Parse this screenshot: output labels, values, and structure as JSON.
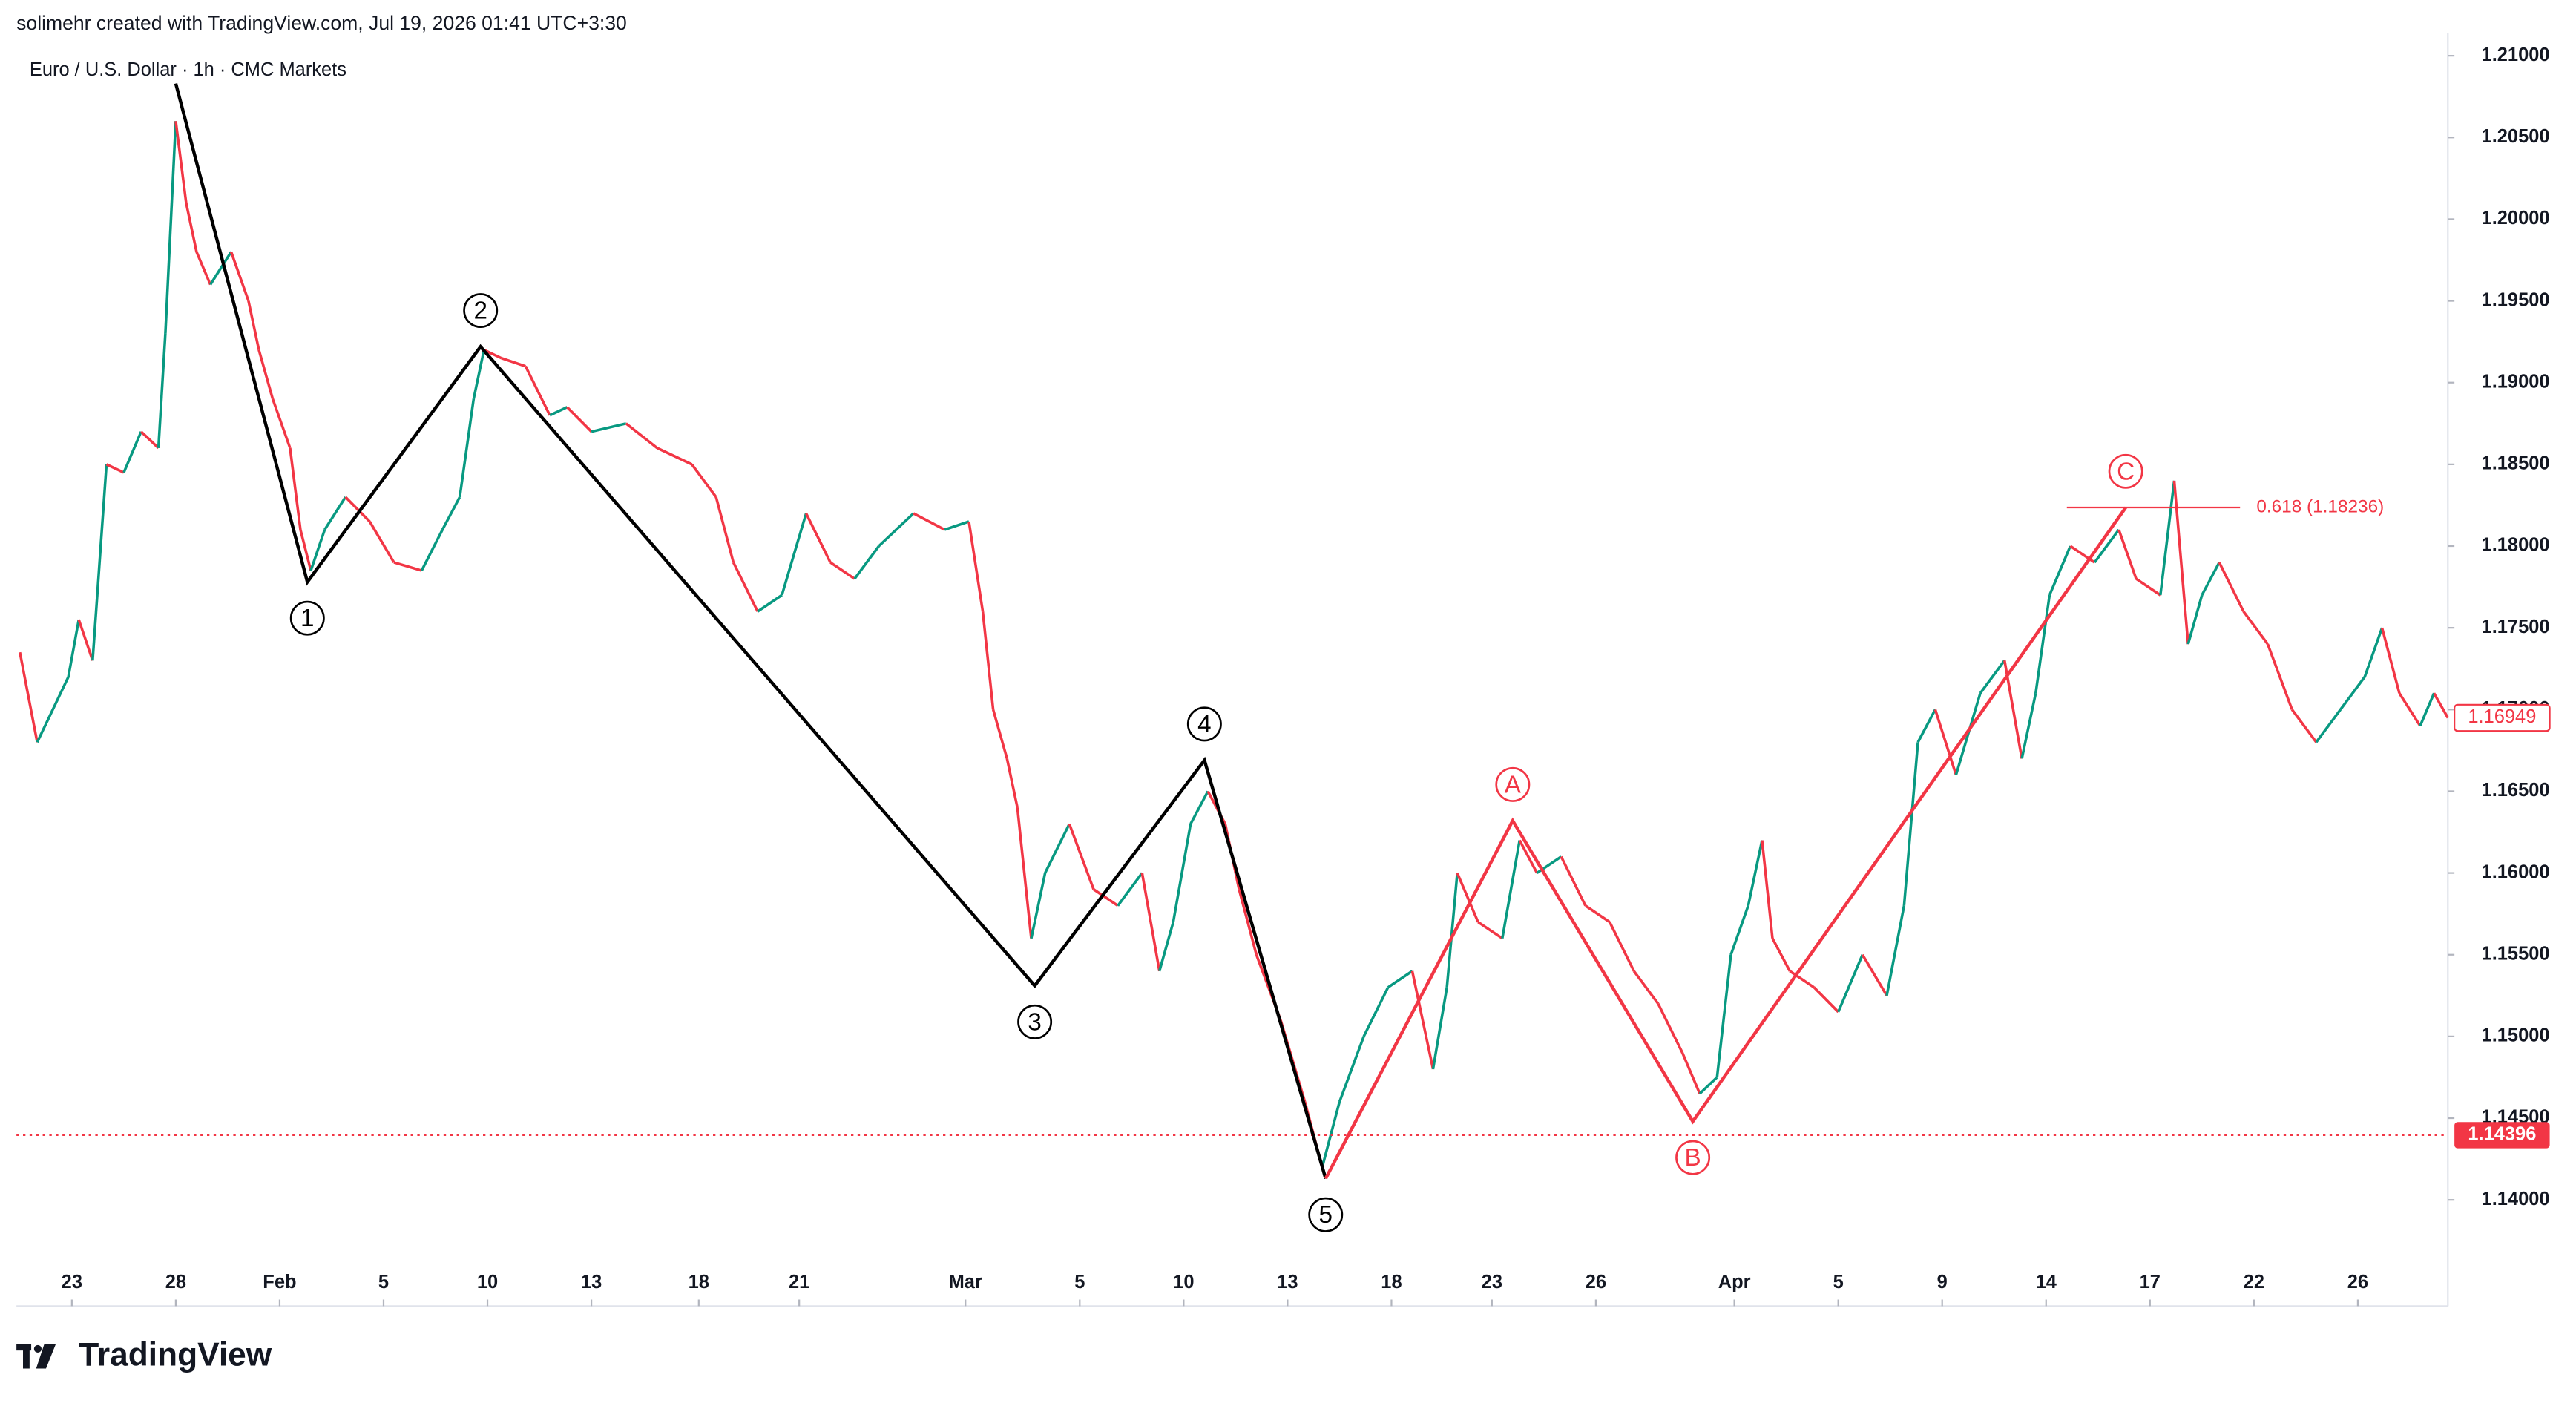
{
  "header": {
    "credit": "solimehr created with TradingView.com, Jul 19, 2026 01:41 UTC+3:30"
  },
  "footer": {
    "brand": "TradingView"
  },
  "chart_data": {
    "type": "line",
    "title": "Euro / U.S. Dollar · 1h · CMC Markets",
    "ylim": [
      1.1335,
      1.2114
    ],
    "yticks": [
      {
        "value": 1.21,
        "label": "1.21000"
      },
      {
        "value": 1.205,
        "label": "1.20500"
      },
      {
        "value": 1.2,
        "label": "1.20000"
      },
      {
        "value": 1.195,
        "label": "1.19500"
      },
      {
        "value": 1.19,
        "label": "1.19000"
      },
      {
        "value": 1.185,
        "label": "1.18500"
      },
      {
        "value": 1.18,
        "label": "1.18000"
      },
      {
        "value": 1.175,
        "label": "1.17500"
      },
      {
        "value": 1.17,
        "label": "1.17000"
      },
      {
        "value": 1.165,
        "label": "1.16500"
      },
      {
        "value": 1.16,
        "label": "1.16000"
      },
      {
        "value": 1.155,
        "label": "1.15500"
      },
      {
        "value": 1.15,
        "label": "1.15000"
      },
      {
        "value": 1.145,
        "label": "1.14500"
      },
      {
        "value": 1.14,
        "label": "1.14000"
      }
    ],
    "xlim": [
      -1.6,
      68.6
    ],
    "xticks": [
      {
        "value": 0,
        "label": "23"
      },
      {
        "value": 3,
        "label": "28"
      },
      {
        "value": 6,
        "label": "Feb"
      },
      {
        "value": 9,
        "label": "5"
      },
      {
        "value": 12,
        "label": "10"
      },
      {
        "value": 15,
        "label": "13"
      },
      {
        "value": 18.1,
        "label": "18"
      },
      {
        "value": 21,
        "label": "21"
      },
      {
        "value": 25.8,
        "label": "Mar"
      },
      {
        "value": 29.1,
        "label": "5"
      },
      {
        "value": 32.1,
        "label": "10"
      },
      {
        "value": 35.1,
        "label": "13"
      },
      {
        "value": 38.1,
        "label": "18"
      },
      {
        "value": 41,
        "label": "23"
      },
      {
        "value": 44,
        "label": "26"
      },
      {
        "value": 48,
        "label": "Apr"
      },
      {
        "value": 51,
        "label": "5"
      },
      {
        "value": 54,
        "label": "9"
      },
      {
        "value": 57,
        "label": "14"
      },
      {
        "value": 60,
        "label": "17"
      },
      {
        "value": 63,
        "label": "22"
      },
      {
        "value": 66,
        "label": "26"
      }
    ],
    "up_color": "#089981",
    "down_color": "#f23645",
    "x": [
      -1.5,
      -1.0,
      -0.1,
      0.2,
      0.6,
      1.0,
      1.5,
      2.0,
      2.5,
      2.7,
      3.0,
      3.3,
      3.6,
      4.0,
      4.6,
      5.1,
      5.4,
      5.8,
      6.3,
      6.6,
      6.9,
      7.3,
      7.9,
      8.6,
      9.3,
      10.1,
      10.7,
      11.2,
      11.6,
      11.9,
      12.4,
      13.1,
      13.8,
      14.3,
      15.0,
      16.0,
      16.9,
      17.9,
      18.6,
      19.1,
      19.8,
      20.5,
      21.2,
      21.9,
      22.6,
      23.3,
      24.3,
      25.2,
      25.9,
      26.3,
      26.6,
      27.0,
      27.3,
      27.7,
      28.1,
      28.8,
      29.5,
      30.2,
      30.9,
      31.4,
      31.8,
      32.3,
      32.8,
      33.3,
      33.7,
      34.2,
      34.9,
      35.6,
      36.1,
      36.6,
      37.3,
      38.0,
      38.7,
      39.3,
      39.7,
      40.0,
      40.6,
      41.3,
      41.8,
      42.3,
      43.0,
      43.7,
      44.4,
      45.1,
      45.8,
      46.5,
      47.0,
      47.5,
      47.9,
      48.4,
      48.8,
      49.1,
      49.6,
      50.3,
      51.0,
      51.7,
      52.4,
      52.9,
      53.3,
      53.8,
      54.4,
      55.1,
      55.8,
      56.3,
      56.7,
      57.1,
      57.7,
      58.4,
      59.1,
      59.6,
      60.3,
      60.7,
      61.1,
      61.5,
      62.0,
      62.7,
      63.4,
      64.1,
      64.8,
      65.5,
      66.2,
      66.7,
      67.2,
      67.8,
      68.2,
      68.6
    ],
    "values": [
      1.1735,
      1.168,
      1.172,
      1.1755,
      1.173,
      1.185,
      1.1845,
      1.187,
      1.186,
      1.193,
      1.206,
      1.201,
      1.198,
      1.196,
      1.198,
      1.195,
      1.192,
      1.189,
      1.186,
      1.181,
      1.1785,
      1.181,
      1.183,
      1.1815,
      1.179,
      1.1785,
      1.181,
      1.183,
      1.189,
      1.192,
      1.1915,
      1.191,
      1.188,
      1.1885,
      1.187,
      1.1875,
      1.186,
      1.185,
      1.183,
      1.179,
      1.176,
      1.177,
      1.182,
      1.179,
      1.178,
      1.18,
      1.182,
      1.181,
      1.1815,
      1.176,
      1.17,
      1.167,
      1.164,
      1.156,
      1.16,
      1.163,
      1.159,
      1.158,
      1.16,
      1.154,
      1.157,
      1.163,
      1.165,
      1.163,
      1.159,
      1.155,
      1.151,
      1.146,
      1.142,
      1.146,
      1.15,
      1.153,
      1.154,
      1.148,
      1.153,
      1.16,
      1.157,
      1.156,
      1.162,
      1.16,
      1.161,
      1.158,
      1.157,
      1.154,
      1.152,
      1.149,
      1.1465,
      1.1475,
      1.155,
      1.158,
      1.162,
      1.156,
      1.154,
      1.153,
      1.1515,
      1.155,
      1.1525,
      1.158,
      1.168,
      1.17,
      1.166,
      1.171,
      1.173,
      1.167,
      1.171,
      1.177,
      1.18,
      1.179,
      1.181,
      1.178,
      1.177,
      1.184,
      1.174,
      1.177,
      1.179,
      1.176,
      1.174,
      1.17,
      1.168,
      1.17,
      1.172,
      1.175,
      1.171,
      1.169,
      1.171,
      1.16949
    ],
    "waves": [
      {
        "color": "#000000",
        "x": [
          3.0,
          6.8,
          11.8,
          27.8,
          32.7,
          36.2
        ],
        "values": [
          1.2083,
          1.1778,
          1.1922,
          1.1531,
          1.1669,
          1.1413
        ],
        "labels": [
          null,
          "1",
          "2",
          "3",
          "4",
          "5"
        ]
      },
      {
        "color": "#f23645",
        "x": [
          36.2,
          41.6,
          46.8,
          59.3
        ],
        "values": [
          1.1413,
          1.1632,
          1.1448,
          1.18236
        ],
        "labels": [
          null,
          "A",
          "B",
          "C"
        ]
      }
    ],
    "fib": {
      "text": "0.618 (1.18236)",
      "value": 1.18236,
      "x": [
        57.6,
        62.6
      ],
      "color": "#f23645"
    },
    "price_line": {
      "value": 1.14396,
      "color": "#f23645"
    },
    "last_price": {
      "value": 1.16949,
      "color": "#f23645"
    }
  }
}
